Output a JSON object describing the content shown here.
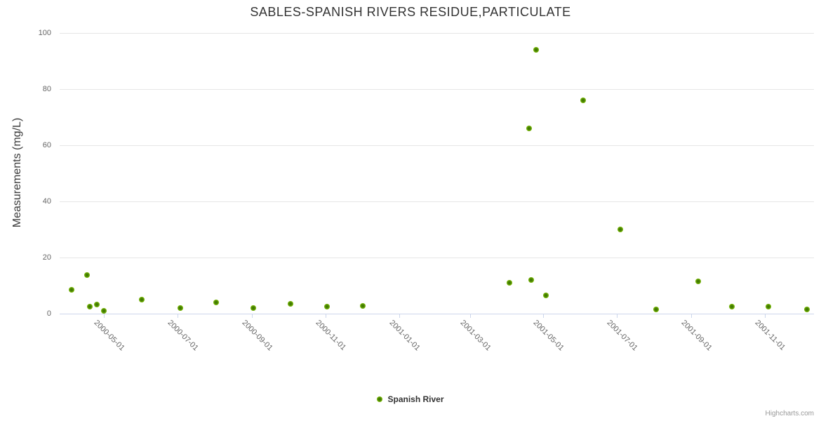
{
  "title": "SABLES-SPANISH RIVERS RESIDUE,PARTICULATE",
  "y_axis": {
    "title": "Measurements (mg/L)"
  },
  "x_axis": {
    "tick_labels": [
      "2000-05-01",
      "2000-07-01",
      "2000-09-01",
      "2000-11-01",
      "2001-01-01",
      "2001-03-01",
      "2001-05-01",
      "2001-07-01",
      "2001-09-01",
      "2001-11-01"
    ]
  },
  "legend": {
    "label": "Spanish River"
  },
  "credits": {
    "label": "Highcharts.com"
  },
  "colors": {
    "series": "#7cb500",
    "series_center": "#3f7a00",
    "grid": "#e6e6e6",
    "axis_line": "#ccd6eb",
    "tick_label": "#666666",
    "title": "#333333",
    "credits": "#999999"
  },
  "chart_data": {
    "type": "scatter",
    "title": "SABLES-SPANISH RIVERS RESIDUE,PARTICULATE",
    "xlabel": "",
    "ylabel": "Measurements (mg/L)",
    "ylim": [
      0,
      100
    ],
    "y_ticks": [
      0,
      20,
      40,
      60,
      80,
      100
    ],
    "x_ticks": [
      "2000-05-01",
      "2000-07-01",
      "2000-09-01",
      "2000-11-01",
      "2001-01-01",
      "2001-03-01",
      "2001-05-01",
      "2001-07-01",
      "2001-09-01",
      "2001-11-01"
    ],
    "x_range": [
      "2000-03-25",
      "2001-12-12"
    ],
    "grid": "horizontal-only",
    "legend_position": "bottom-center",
    "series": [
      {
        "name": "Spanish River",
        "color": "#7cb500",
        "points": [
          [
            "2000-04-04",
            8.5
          ],
          [
            "2000-04-17",
            13.6
          ],
          [
            "2000-04-19",
            2.3
          ],
          [
            "2000-04-25",
            3.1
          ],
          [
            "2000-05-01",
            1.0
          ],
          [
            "2000-06-01",
            4.8
          ],
          [
            "2000-07-03",
            1.9
          ],
          [
            "2000-08-02",
            3.8
          ],
          [
            "2000-09-02",
            1.8
          ],
          [
            "2000-10-03",
            3.5
          ],
          [
            "2000-11-02",
            2.4
          ],
          [
            "2000-12-02",
            2.6
          ],
          [
            "2001-04-03",
            11.0
          ],
          [
            "2001-04-19",
            66.0
          ],
          [
            "2001-04-21",
            12.0
          ],
          [
            "2001-04-25",
            94.0
          ],
          [
            "2001-05-03",
            6.4
          ],
          [
            "2001-06-03",
            76.0
          ],
          [
            "2001-07-04",
            30.0
          ],
          [
            "2001-08-03",
            1.4
          ],
          [
            "2001-09-07",
            11.3
          ],
          [
            "2001-10-05",
            2.5
          ],
          [
            "2001-11-04",
            2.5
          ],
          [
            "2001-12-06",
            1.3
          ]
        ]
      }
    ]
  }
}
